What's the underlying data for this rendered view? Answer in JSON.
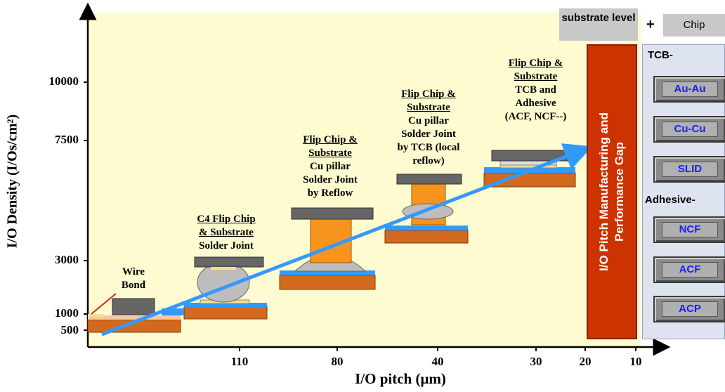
{
  "axes": {
    "y_label": "I/O Density (I/Os/cm²)",
    "x_label": "I/O pitch (μm)",
    "y_ticks": [
      "10000",
      "7500",
      "3000",
      "1000",
      "500"
    ],
    "x_ticks": [
      "110",
      "80",
      "40",
      "30",
      "20",
      "10"
    ]
  },
  "header": {
    "substrate_level": "substrate level",
    "plus": "+",
    "chip": "Chip"
  },
  "packages": {
    "wire_bond": {
      "line1": "Wire",
      "line2": "Bond"
    },
    "c4": {
      "line1": "C4 Flip Chip",
      "line2": "& Substrate",
      "line3": "Solder Joint"
    },
    "cu_reflow": {
      "line1": "Flip Chip &",
      "line2": "Substrate",
      "line3": "Cu pillar",
      "line4": "Solder Joint",
      "line5": "by Reflow"
    },
    "cu_tcb": {
      "line1": "Flip Chip &",
      "line2": "Substrate",
      "line3": "Cu pillar",
      "line4": "Solder Joint",
      "line5": "by TCB (local",
      "line6": "reflow)"
    },
    "tcb_adhesive": {
      "line1": "Flip Chip &",
      "line2": "Substrate",
      "line3": "TCB and",
      "line4": "Adhesive",
      "line5": "(ACF, NCF--)"
    }
  },
  "gap_bar": {
    "line1": "I/O Pitch Manufacturing and",
    "line2": "Performance Gap"
  },
  "tech_panel": {
    "tcb_heading": "TCB-",
    "tcb_items": [
      "Au-Au",
      "Cu-Cu",
      "SLID"
    ],
    "adhesive_heading": "Adhesive-",
    "adhesive_items": [
      "NCF",
      "ACF",
      "ACP"
    ]
  },
  "colors": {
    "plot_background": "#fdfbcf",
    "substrate": "#d2691e",
    "die": "#666666",
    "cu_pillar": "#f7941d",
    "solder": "#bdbdbd",
    "trend_arrow": "#3399ff",
    "gap_bar": "#cc3300",
    "tech_text": "#1a1aff"
  }
}
